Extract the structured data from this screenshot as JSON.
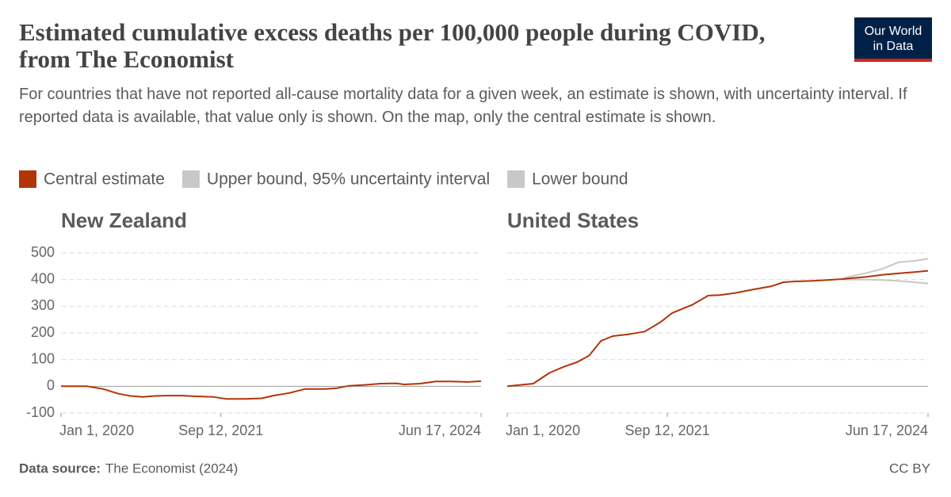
{
  "title": "Estimated cumulative excess deaths per 100,000 people during COVID, from The Economist",
  "subtitle": "For countries that have not reported all-cause mortality data for a given week, an estimate is shown, with uncertainty interval. If reported data is available, that value only is shown. On the map, only the central estimate is shown.",
  "logo": [
    "Our World",
    "in Data"
  ],
  "source_label": "Data source:",
  "source": "The Economist (2024)",
  "license": "CC BY",
  "chart_data": [
    {
      "type": "line",
      "title": "New Zealand",
      "x": [
        "2020-01-01",
        "2020-04-11",
        "2020-06-12",
        "2020-08-12",
        "2020-09-27",
        "2020-11-13",
        "2020-12-29",
        "2021-02-13",
        "2021-04-15",
        "2021-06-16",
        "2021-08-16",
        "2021-10-01",
        "2021-12-17",
        "2022-02-17",
        "2022-04-04",
        "2022-06-04",
        "2022-08-05",
        "2022-10-20",
        "2022-12-06",
        "2023-01-21",
        "2023-03-23",
        "2023-05-24",
        "2023-07-24",
        "2023-08-24",
        "2023-10-24",
        "2023-12-24",
        "2024-02-24",
        "2024-04-26",
        "2024-06-17"
      ],
      "series": [
        {
          "name": "Central estimate",
          "color": "#b13507",
          "values": [
            0,
            0,
            -10,
            -28,
            -36,
            -40,
            -36,
            -35,
            -35,
            -38,
            -40,
            -47,
            -47,
            -45,
            -35,
            -25,
            -10,
            -10,
            -7,
            2,
            5,
            10,
            11,
            7,
            10,
            18,
            18,
            16,
            19
          ]
        }
      ],
      "xlim": [
        "2020-01-01",
        "2024-06-17"
      ],
      "xticks": [
        {
          "value": "2020-01-01",
          "label": "Jan 1, 2020"
        },
        {
          "value": "2021-09-12",
          "label": "Sep 12, 2021"
        },
        {
          "value": "2024-06-17",
          "label": "Jun 17, 2024"
        }
      ],
      "ylim": [
        -100,
        500
      ],
      "yticks": [
        -100,
        0,
        100,
        200,
        300,
        400,
        500
      ],
      "grid": true
    },
    {
      "type": "line",
      "title": "United States",
      "x": [
        "2020-01-01",
        "2020-04-11",
        "2020-06-12",
        "2020-08-12",
        "2020-09-27",
        "2020-11-13",
        "2020-12-29",
        "2021-02-13",
        "2021-04-15",
        "2021-06-16",
        "2021-08-16",
        "2021-10-01",
        "2021-12-17",
        "2022-02-17",
        "2022-04-04",
        "2022-06-04",
        "2022-08-05",
        "2022-10-20",
        "2022-12-06",
        "2023-01-21",
        "2023-03-23",
        "2023-05-24",
        "2023-07-24",
        "2023-08-24",
        "2023-10-24",
        "2023-12-24",
        "2024-02-24",
        "2024-04-26",
        "2024-06-17"
      ],
      "series": [
        {
          "name": "Central estimate",
          "color": "#b13507",
          "values": [
            0,
            10,
            50,
            75,
            90,
            115,
            170,
            188,
            195,
            205,
            240,
            275,
            305,
            340,
            342,
            350,
            362,
            375,
            390,
            393,
            395,
            398,
            402,
            405,
            410,
            418,
            423,
            428,
            433
          ]
        },
        {
          "name": "Upper bound, 95% uncertainty interval",
          "color": "#c8c8c8",
          "values": [
            null,
            null,
            null,
            null,
            null,
            null,
            null,
            null,
            null,
            null,
            null,
            null,
            null,
            null,
            null,
            null,
            null,
            null,
            null,
            null,
            null,
            null,
            405,
            412,
            425,
            440,
            465,
            470,
            478
          ]
        },
        {
          "name": "Lower bound",
          "color": "#c8c8c8",
          "values": [
            null,
            null,
            null,
            null,
            null,
            null,
            null,
            null,
            null,
            null,
            null,
            null,
            null,
            null,
            null,
            null,
            null,
            null,
            null,
            null,
            null,
            null,
            400,
            400,
            400,
            398,
            395,
            390,
            385
          ]
        }
      ],
      "xlim": [
        "2020-01-01",
        "2024-06-17"
      ],
      "xticks": [
        {
          "value": "2020-01-01",
          "label": "Jan 1, 2020"
        },
        {
          "value": "2021-09-12",
          "label": "Sep 12, 2021"
        },
        {
          "value": "2024-06-17",
          "label": "Jun 17, 2024"
        }
      ],
      "ylim": [
        -100,
        500
      ],
      "yticks": [
        -100,
        0,
        100,
        200,
        300,
        400,
        500
      ],
      "grid": true
    }
  ]
}
